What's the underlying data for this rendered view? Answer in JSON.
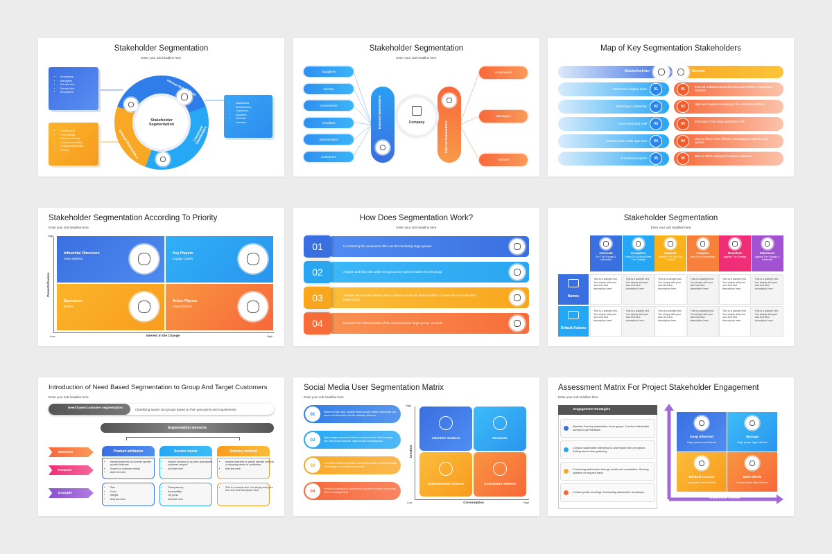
{
  "slides": [
    {
      "title": "Stakeholder Segmentation",
      "subtitle": "Enter your sub headline here",
      "center": "Stakeholder Segmentation",
      "segments": [
        "Internal Stakeholders",
        "Connected Stakeholders",
        "External Stakeholders"
      ],
      "left_list": [
        "Employees",
        "Managers",
        "Sample text",
        "Sample text",
        "Employees"
      ],
      "right_list": [
        "Distributors",
        "Shareholders",
        "Customers",
        "Suppliers",
        "Financial",
        "Investors"
      ],
      "bottom_list": [
        "Government",
        "Press/Media",
        "Pressure Groups",
        "Local communities",
        "Professional Bodies",
        "Society"
      ]
    },
    {
      "title": "Stakeholder Segmentation",
      "subtitle": "Enter your sub headline here",
      "left": [
        "Suppliers",
        "Society",
        "Government",
        "Creditors",
        "Shareholders",
        "Customers"
      ],
      "external": "External Stakeholders",
      "company": "Company",
      "internal": "Internal Stakeholders",
      "right": [
        "Employees",
        "Managers",
        "Owners"
      ]
    },
    {
      "title": "Map of Key Segmentation Stakeholders",
      "headers": [
        "Stakeholder",
        "Needs"
      ],
      "numbers": [
        "01",
        "02",
        "03",
        "04",
        "05"
      ],
      "stakeholders": [
        "Consumer insights team",
        "Marketing Leadership",
        "Local marketing staff",
        "Creative and media agencies",
        "Functional experts"
      ],
      "needs": [
        "External Subsets/Comprehensive scale results & supporting statistics",
        "High-level segment mapping to the respective markets",
        "Information that brings segments to life",
        "Data to inform more effective messaging & media-buying options",
        "Data to inform category/ functional initiatives"
      ]
    },
    {
      "title": "Stakeholder Segmentation According To Priority",
      "subtitle": "Enter your sub headline here",
      "quadrants": [
        {
          "name": "Influential Observers",
          "desc": "Keep Satisfied"
        },
        {
          "name": "Key Players",
          "desc": "Engage Closely"
        },
        {
          "name": "Spectators",
          "desc": "Monitor"
        },
        {
          "name": "Active Players",
          "desc": "Keep Informed"
        }
      ],
      "y_axis": "Power/Influence",
      "x_axis": "Interest in the Change",
      "high_y": "High",
      "low": "Low",
      "high_x": "High"
    },
    {
      "title": "How Does Segmentation Work?",
      "subtitle": "Enter your sub headline here",
      "steps": [
        {
          "number": "01",
          "text": "In marketing the consumers often are the marketing target groups"
        },
        {
          "number": "02",
          "text": "Analyze and find roles within this group and opinion leaders for this group"
        },
        {
          "number": "03",
          "text": "Analyze who should influence who in order to reach the planned effect. Choose the communication target group"
        },
        {
          "number": "04",
          "text": "Research the characteristics of the communication target group, conclude"
        }
      ]
    },
    {
      "title": "Stakeholder Segmentation",
      "subtitle": "Enter your sub headline here",
      "columns": [
        {
          "name": "Advocate",
          "desc": "For The Change & Influential"
        },
        {
          "name": "Acceptors",
          "desc": "Likely To Go Along With The Change"
        },
        {
          "name": "Neutrals",
          "desc": "Sample Text That You Can Edit"
        },
        {
          "name": "Sceptics",
          "desc": "Able To Be Persuaded"
        },
        {
          "name": "Resisters",
          "desc": "Against The Change"
        },
        {
          "name": "Saboteurs",
          "desc": "Against The Change & Influential"
        }
      ],
      "rows": [
        "Names",
        "Default Actions"
      ],
      "cells": [
        [
          "This is a sample text. You simply add your own text and description here.",
          "This is a sample text. You simply add your own text and description here.",
          "This is a sample text. You simply add your own text and description here.",
          "This is a sample text. You simply add your own text and description here.",
          "This is a sample text. You simply add your own text and description here.",
          "This is a sample text. You simply add your own text and description here."
        ],
        [
          "This is a sample text. You simply add your own text and description here.",
          "This is a sample text. You simply add your own text and description here.",
          "This is a sample text. You simply add your own text and description here.",
          "This is a sample text. You simply add your own text and description here.",
          "This is a sample text. You simply add your own text and description here.",
          "This is a sample text. You simply add your own text and description here."
        ]
      ]
    },
    {
      "title": "Introduction of Need Based Segmentation to Group And Target Customers",
      "subtitle": "Enter your sub headline here",
      "banner": "Need based customer segmentation",
      "banner_text": "Classifying buyers into groups based on their pain points and requirements",
      "elements_title": "Segmentation elements",
      "columns": [
        "Product attributes",
        "Service needs",
        "Delivery method"
      ],
      "rows": [
        "Elements",
        "Purpose",
        "Example"
      ],
      "purpose": [
        [
          "Assists business to promote specific product features",
          "Speed on customer needs",
          "Add text here"
        ],
        [
          "Assists business to provide appropriate customer support",
          "Add text here"
        ],
        [
          "Assists business to satisfy specific delivery or shipping needs of customers",
          "Add text here"
        ]
      ],
      "example": [
        [
          "Size",
          "Color",
          "Weight",
          "Add text here"
        ],
        [
          "Transparency",
          "Accessibility",
          "Tip press",
          "Add text here"
        ],
        [
          "This is a sample text. You simply add your own text and description here."
        ]
      ]
    },
    {
      "title": "Social Media User Segmentation Matrix",
      "subtitle": "Enter your sub headline here",
      "items": [
        {
          "number": "01",
          "text": "Share of their said, loosely linked social media community can serve as influential real-life celebrity advisers"
        },
        {
          "number": "02",
          "text": "Spend large amounts of time in social media. Hold stronger ties with social network. Value brand ambassadors"
        },
        {
          "number": "03",
          "text": "Low level of both interaction and consumption on social media. Disengage in the brand community"
        },
        {
          "number": "04",
          "text": "Perform a role that is minimal and growth of brand community. This is a sample text"
        }
      ],
      "quadrants": [
        "Attention Seekers",
        "Devotees",
        "Entertainment Chasers",
        "Connection Seekers"
      ],
      "y_axis": "Creation",
      "x_axis": "Consumption",
      "high_y": "High",
      "low": "Low",
      "high_x": "High"
    },
    {
      "title": "Assessment Matrix For Project Stakeholder Engagement",
      "subtitle": "Enter your sub headline here",
      "panel_title": "Engagement Strategies",
      "strategies": [
        "Attention Develop stakeholder focus groups. Conduct stakeholder surveys to get feedback",
        "Conduct stakeholder interviews to understand their perception. Setting face to face gathering",
        "Conducting stakeholder through emails and newsletters. Sending updates on frequent basis",
        "Conduct public meetings. Conducting stakeholder workshops"
      ],
      "quadrants": [
        {
          "name": "Keep Informed",
          "desc": "High power low interest"
        },
        {
          "name": "Manage",
          "desc": "High power high interest"
        },
        {
          "name": "Minimal Contact",
          "desc": "Low power low interest"
        },
        {
          "name": "Meet Needs",
          "desc": "Lower power high interest"
        }
      ],
      "x_axis": "Stakeholder interest"
    }
  ]
}
